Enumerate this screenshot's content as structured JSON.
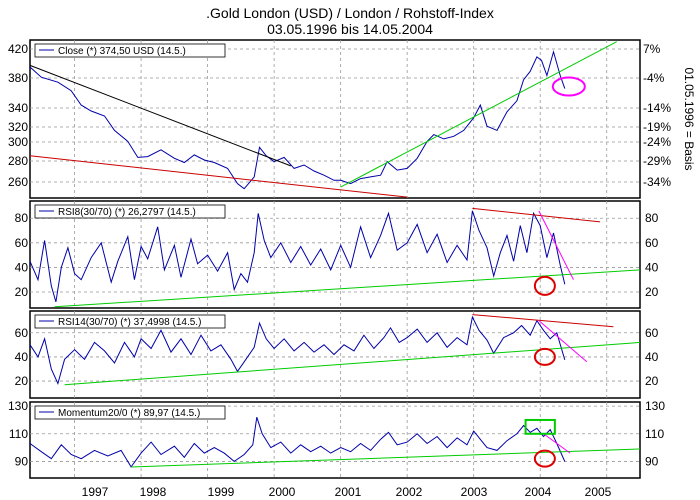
{
  "title": {
    "line1": ".Gold London (USD) / London / Rohstoff-Index",
    "line2": "03.05.1996 bis 14.05.2004"
  },
  "colors": {
    "price": "#0000aa",
    "support": "#00cc00",
    "resistance": "#cc0000",
    "downtrend": "#000000",
    "short_trend": "#ff00ff",
    "grid": "#999999",
    "circle_red": "#dd0000",
    "circle_magenta": "#ff00ff",
    "box_green": "#00cc00"
  },
  "chart_data": [
    {
      "type": "line",
      "legend": "Close (*) 374,50 USD (14.5.)",
      "y_ticks": [
        260,
        280,
        300,
        320,
        340,
        380,
        420
      ],
      "right_ticks": [
        "7%",
        "-4%",
        "-14%",
        "-19%",
        "-24%",
        "-29%",
        "-34%"
      ],
      "right_label": "01.05.1996 = Basis",
      "ylim": [
        245,
        432
      ],
      "points": [
        [
          1996.33,
          400
        ],
        [
          1996.5,
          388
        ],
        [
          1996.75,
          382
        ],
        [
          1996.95,
          372
        ],
        [
          1997.1,
          355
        ],
        [
          1997.25,
          348
        ],
        [
          1997.45,
          342
        ],
        [
          1997.6,
          325
        ],
        [
          1997.8,
          312
        ],
        [
          1997.95,
          293
        ],
        [
          1998.1,
          294
        ],
        [
          1998.3,
          302
        ],
        [
          1998.5,
          292
        ],
        [
          1998.65,
          287
        ],
        [
          1998.8,
          296
        ],
        [
          1998.95,
          290
        ],
        [
          1999.1,
          287
        ],
        [
          1999.3,
          280
        ],
        [
          1999.45,
          262
        ],
        [
          1999.55,
          256
        ],
        [
          1999.7,
          270
        ],
        [
          1999.78,
          305
        ],
        [
          1999.88,
          295
        ],
        [
          2000.0,
          288
        ],
        [
          2000.15,
          293
        ],
        [
          2000.3,
          280
        ],
        [
          2000.45,
          284
        ],
        [
          2000.6,
          277
        ],
        [
          2000.75,
          272
        ],
        [
          2000.9,
          266
        ],
        [
          2001.0,
          266
        ],
        [
          2001.15,
          262
        ],
        [
          2001.3,
          268
        ],
        [
          2001.45,
          270
        ],
        [
          2001.6,
          272
        ],
        [
          2001.7,
          288
        ],
        [
          2001.85,
          278
        ],
        [
          2002.0,
          280
        ],
        [
          2002.15,
          292
        ],
        [
          2002.3,
          312
        ],
        [
          2002.4,
          320
        ],
        [
          2002.55,
          315
        ],
        [
          2002.7,
          318
        ],
        [
          2002.85,
          325
        ],
        [
          2003.0,
          340
        ],
        [
          2003.1,
          355
        ],
        [
          2003.2,
          330
        ],
        [
          2003.35,
          325
        ],
        [
          2003.5,
          347
        ],
        [
          2003.65,
          360
        ],
        [
          2003.75,
          385
        ],
        [
          2003.85,
          395
        ],
        [
          2003.95,
          412
        ],
        [
          2004.02,
          408
        ],
        [
          2004.1,
          390
        ],
        [
          2004.2,
          418
        ],
        [
          2004.3,
          390
        ],
        [
          2004.37,
          374.5
        ]
      ]
    },
    {
      "type": "line",
      "legend": "RSI8(30/70) (*) 26,2797 (14.5.)",
      "y_ticks": [
        20,
        40,
        60,
        80
      ],
      "ylim": [
        7,
        94
      ],
      "points": [
        [
          1996.33,
          45
        ],
        [
          1996.45,
          30
        ],
        [
          1996.55,
          62
        ],
        [
          1996.65,
          25
        ],
        [
          1996.72,
          12
        ],
        [
          1996.8,
          40
        ],
        [
          1996.9,
          56
        ],
        [
          1997.0,
          35
        ],
        [
          1997.1,
          30
        ],
        [
          1997.25,
          48
        ],
        [
          1997.4,
          60
        ],
        [
          1997.55,
          28
        ],
        [
          1997.65,
          45
        ],
        [
          1997.8,
          65
        ],
        [
          1997.9,
          30
        ],
        [
          1998.0,
          57
        ],
        [
          1998.1,
          47
        ],
        [
          1998.25,
          73
        ],
        [
          1998.35,
          38
        ],
        [
          1998.5,
          58
        ],
        [
          1998.6,
          32
        ],
        [
          1998.75,
          63
        ],
        [
          1998.85,
          43
        ],
        [
          1999.0,
          50
        ],
        [
          1999.15,
          37
        ],
        [
          1999.3,
          52
        ],
        [
          1999.4,
          22
        ],
        [
          1999.5,
          35
        ],
        [
          1999.6,
          28
        ],
        [
          1999.7,
          52
        ],
        [
          1999.76,
          84
        ],
        [
          1999.85,
          62
        ],
        [
          1999.95,
          48
        ],
        [
          2000.1,
          60
        ],
        [
          2000.25,
          44
        ],
        [
          2000.4,
          57
        ],
        [
          2000.55,
          42
        ],
        [
          2000.7,
          55
        ],
        [
          2000.85,
          38
        ],
        [
          2001.0,
          58
        ],
        [
          2001.15,
          40
        ],
        [
          2001.3,
          73
        ],
        [
          2001.45,
          48
        ],
        [
          2001.6,
          66
        ],
        [
          2001.72,
          84
        ],
        [
          2001.85,
          54
        ],
        [
          2002.0,
          60
        ],
        [
          2002.15,
          75
        ],
        [
          2002.3,
          52
        ],
        [
          2002.45,
          67
        ],
        [
          2002.6,
          44
        ],
        [
          2002.75,
          58
        ],
        [
          2002.9,
          46
        ],
        [
          2002.98,
          86
        ],
        [
          2003.08,
          70
        ],
        [
          2003.2,
          56
        ],
        [
          2003.3,
          33
        ],
        [
          2003.4,
          52
        ],
        [
          2003.5,
          66
        ],
        [
          2003.6,
          45
        ],
        [
          2003.7,
          74
        ],
        [
          2003.8,
          52
        ],
        [
          2003.9,
          84
        ],
        [
          2004.0,
          74
        ],
        [
          2004.1,
          48
        ],
        [
          2004.2,
          68
        ],
        [
          2004.3,
          42
        ],
        [
          2004.37,
          26.28
        ]
      ]
    },
    {
      "type": "line",
      "legend": "RSI14(30/70) (*) 37,4998 (14.5.)",
      "y_ticks": [
        20,
        40,
        60
      ],
      "ylim": [
        6,
        78
      ],
      "points": [
        [
          1996.33,
          50
        ],
        [
          1996.45,
          40
        ],
        [
          1996.55,
          55
        ],
        [
          1996.65,
          30
        ],
        [
          1996.75,
          18
        ],
        [
          1996.85,
          38
        ],
        [
          1997.0,
          46
        ],
        [
          1997.15,
          38
        ],
        [
          1997.3,
          52
        ],
        [
          1997.45,
          45
        ],
        [
          1997.6,
          35
        ],
        [
          1997.75,
          52
        ],
        [
          1997.9,
          40
        ],
        [
          1998.0,
          55
        ],
        [
          1998.15,
          47
        ],
        [
          1998.3,
          62
        ],
        [
          1998.45,
          44
        ],
        [
          1998.6,
          55
        ],
        [
          1998.75,
          42
        ],
        [
          1998.9,
          58
        ],
        [
          1999.05,
          45
        ],
        [
          1999.2,
          50
        ],
        [
          1999.35,
          38
        ],
        [
          1999.45,
          28
        ],
        [
          1999.55,
          36
        ],
        [
          1999.7,
          48
        ],
        [
          1999.78,
          68
        ],
        [
          1999.88,
          55
        ],
        [
          2000.0,
          47
        ],
        [
          2000.15,
          55
        ],
        [
          2000.3,
          45
        ],
        [
          2000.45,
          52
        ],
        [
          2000.6,
          44
        ],
        [
          2000.75,
          50
        ],
        [
          2000.9,
          42
        ],
        [
          2001.05,
          50
        ],
        [
          2001.2,
          45
        ],
        [
          2001.35,
          58
        ],
        [
          2001.5,
          47
        ],
        [
          2001.65,
          56
        ],
        [
          2001.75,
          64
        ],
        [
          2001.88,
          52
        ],
        [
          2002.0,
          56
        ],
        [
          2002.15,
          63
        ],
        [
          2002.3,
          52
        ],
        [
          2002.45,
          60
        ],
        [
          2002.6,
          48
        ],
        [
          2002.75,
          56
        ],
        [
          2002.9,
          50
        ],
        [
          2002.98,
          73
        ],
        [
          2003.08,
          62
        ],
        [
          2003.2,
          54
        ],
        [
          2003.3,
          43
        ],
        [
          2003.45,
          56
        ],
        [
          2003.6,
          60
        ],
        [
          2003.72,
          66
        ],
        [
          2003.85,
          58
        ],
        [
          2003.95,
          70
        ],
        [
          2004.05,
          62
        ],
        [
          2004.15,
          55
        ],
        [
          2004.25,
          60
        ],
        [
          2004.37,
          37.5
        ]
      ]
    },
    {
      "type": "line",
      "legend": "Momentum20/0 (*) 89,97 (14.5.)",
      "y_ticks": [
        90,
        110,
        130
      ],
      "ylim": [
        78,
        133
      ],
      "points": [
        [
          1996.33,
          103
        ],
        [
          1996.5,
          97
        ],
        [
          1996.65,
          92
        ],
        [
          1996.8,
          102
        ],
        [
          1996.95,
          95
        ],
        [
          1997.1,
          92
        ],
        [
          1997.3,
          98
        ],
        [
          1997.5,
          94
        ],
        [
          1997.7,
          98
        ],
        [
          1997.85,
          86
        ],
        [
          1998.0,
          96
        ],
        [
          1998.15,
          104
        ],
        [
          1998.3,
          95
        ],
        [
          1998.5,
          101
        ],
        [
          1998.65,
          93
        ],
        [
          1998.8,
          103
        ],
        [
          1998.95,
          96
        ],
        [
          1999.1,
          100
        ],
        [
          1999.25,
          96
        ],
        [
          1999.4,
          90
        ],
        [
          1999.55,
          95
        ],
        [
          1999.68,
          102
        ],
        [
          1999.74,
          122
        ],
        [
          1999.82,
          110
        ],
        [
          1999.95,
          100
        ],
        [
          2000.1,
          104
        ],
        [
          2000.25,
          96
        ],
        [
          2000.4,
          102
        ],
        [
          2000.55,
          97
        ],
        [
          2000.7,
          101
        ],
        [
          2000.85,
          96
        ],
        [
          2001.0,
          100
        ],
        [
          2001.15,
          97
        ],
        [
          2001.3,
          103
        ],
        [
          2001.45,
          98
        ],
        [
          2001.6,
          106
        ],
        [
          2001.72,
          111
        ],
        [
          2001.85,
          102
        ],
        [
          2002.0,
          104
        ],
        [
          2002.15,
          110
        ],
        [
          2002.3,
          103
        ],
        [
          2002.45,
          108
        ],
        [
          2002.6,
          100
        ],
        [
          2002.75,
          107
        ],
        [
          2002.9,
          102
        ],
        [
          2003.0,
          112
        ],
        [
          2003.1,
          106
        ],
        [
          2003.2,
          100
        ],
        [
          2003.35,
          98
        ],
        [
          2003.5,
          105
        ],
        [
          2003.65,
          110
        ],
        [
          2003.75,
          116
        ],
        [
          2003.85,
          111
        ],
        [
          2003.95,
          114
        ],
        [
          2004.05,
          108
        ],
        [
          2004.15,
          113
        ],
        [
          2004.25,
          103
        ],
        [
          2004.37,
          89.97
        ]
      ]
    }
  ],
  "x_axis": {
    "labels": [
      "1997",
      "1998",
      "1999",
      "2000",
      "2001",
      "2002",
      "2003",
      "2004",
      "2005"
    ]
  }
}
